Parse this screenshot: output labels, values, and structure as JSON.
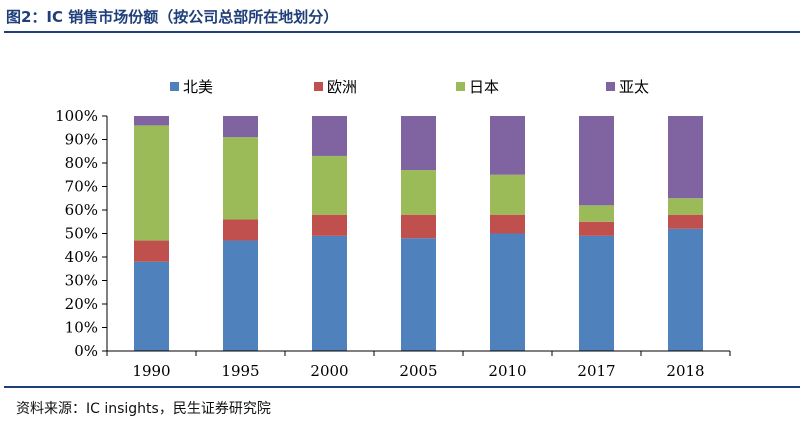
{
  "header": {
    "title": "图2：IC 销售市场份额（按公司总部所在地划分）"
  },
  "footer": {
    "source": "资料来源：IC insights，民生证券研究院"
  },
  "chart_data": {
    "type": "bar",
    "stacked": true,
    "percent": true,
    "categories": [
      "1990",
      "1995",
      "2000",
      "2005",
      "2010",
      "2017",
      "2018"
    ],
    "series": [
      {
        "name": "北美",
        "color": "#4f81bd",
        "values": [
          38,
          47,
          49,
          48,
          50,
          49,
          52
        ]
      },
      {
        "name": "欧洲",
        "color": "#c0504d",
        "values": [
          9,
          9,
          9,
          10,
          8,
          6,
          6
        ]
      },
      {
        "name": "日本",
        "color": "#9bbb59",
        "values": [
          49,
          35,
          25,
          19,
          17,
          7,
          7
        ]
      },
      {
        "name": "亚太",
        "color": "#8064a2",
        "values": [
          4,
          9,
          17,
          23,
          25,
          38,
          35
        ]
      }
    ],
    "y_ticks": [
      "0%",
      "10%",
      "20%",
      "30%",
      "40%",
      "50%",
      "60%",
      "70%",
      "80%",
      "90%",
      "100%"
    ],
    "ylim": [
      0,
      100
    ],
    "legend": "top",
    "grid": false
  }
}
